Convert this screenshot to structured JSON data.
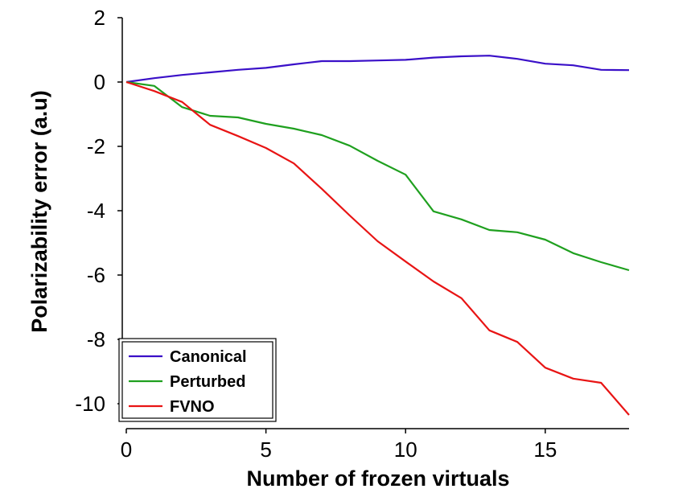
{
  "chart_data": {
    "type": "line",
    "title": "",
    "xlabel": "Number of frozen virtuals",
    "ylabel": "Polarizability error (a.u)",
    "xlim": [
      0,
      18
    ],
    "ylim": [
      -10.5,
      2
    ],
    "x_ticks": [
      0,
      5,
      10,
      15
    ],
    "y_ticks": [
      2,
      0,
      -2,
      -4,
      -6,
      -8,
      -10
    ],
    "grid": false,
    "legend_position": "bottom-left",
    "x": [
      0,
      1,
      2,
      3,
      4,
      5,
      6,
      7,
      8,
      9,
      10,
      11,
      12,
      13,
      14,
      15,
      16,
      17,
      18
    ],
    "series": [
      {
        "name": "Canonical",
        "color": "#3a10c8",
        "values": [
          0,
          0.12,
          0.22,
          0.3,
          0.38,
          0.44,
          0.55,
          0.65,
          0.65,
          0.67,
          0.69,
          0.76,
          0.8,
          0.82,
          0.72,
          0.57,
          0.52,
          0.38,
          0.37
        ]
      },
      {
        "name": "Perturbed",
        "color": "#1fa01f",
        "values": [
          0,
          -0.12,
          -0.78,
          -1.05,
          -1.1,
          -1.3,
          -1.45,
          -1.65,
          -1.98,
          -2.45,
          -2.88,
          -4.02,
          -4.27,
          -4.6,
          -4.67,
          -4.9,
          -5.32,
          -5.6,
          -5.85
        ]
      },
      {
        "name": "FVNO",
        "color": "#e81414",
        "values": [
          0,
          -0.28,
          -0.62,
          -1.33,
          -1.68,
          -2.05,
          -2.53,
          -3.32,
          -4.15,
          -4.95,
          -5.58,
          -6.2,
          -6.72,
          -7.72,
          -8.08,
          -8.88,
          -9.22,
          -9.35,
          -10.35
        ]
      }
    ]
  }
}
